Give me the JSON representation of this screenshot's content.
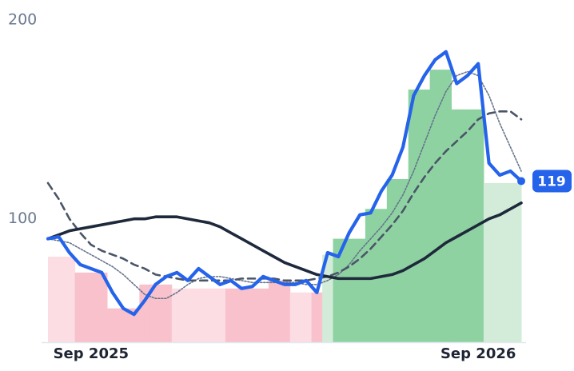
{
  "chart_data": {
    "type": "line",
    "categories": [
      null,
      null,
      null,
      null,
      "Sep 2025",
      null,
      null,
      null,
      null,
      null,
      null,
      null,
      null,
      null,
      null,
      null,
      null,
      null,
      null,
      null,
      null,
      null,
      null,
      null,
      null,
      null,
      null,
      null,
      null,
      null,
      null,
      null,
      null,
      null,
      null,
      null,
      null,
      null,
      null,
      null,
      "Sep 2026",
      null,
      null,
      null,
      null
    ],
    "ylim": [
      38,
      210
    ],
    "yticks": [
      100,
      200
    ],
    "series": [
      {
        "kind": "bars",
        "colors": [
          "#fcdde3",
          "#fcdde3",
          "#fcdde3",
          "#f8c1cb",
          "#f8c1cb",
          "#f8c1cb",
          "#f8c1cb",
          "#f8c1cb",
          "#f8c1cb",
          "#f8c1cb",
          "#f8c1cb",
          "#f8c1cb",
          "#fcdde3",
          "#fcdde3",
          "#fcdde3",
          "#fcdde3",
          "#fcdde3",
          "#f8c1cb",
          "#f8c1cb",
          "#f8c1cb",
          "#f8c1cb",
          "#f8c1cb",
          "#f8c1cb",
          "#fcdde3",
          "#fcdde3",
          "#f8c1cb",
          "#d3ecd9",
          "#8fd2a2",
          "#8fd2a2",
          "#8fd2a2",
          "#8fd2a2",
          "#8fd2a2",
          "#8fd2a2",
          "#8fd2a2",
          "#8fd2a2",
          "#8fd2a2",
          "#8fd2a2",
          "#8fd2a2",
          "#8fd2a2",
          "#8fd2a2",
          "#8fd2a2",
          "#d3ecd9",
          "#d3ecd9",
          "#d3ecd9",
          "#d3ecd9"
        ],
        "values": [
          81,
          81,
          81,
          73,
          73,
          73,
          55,
          55,
          55,
          67,
          67,
          67,
          65,
          65,
          65,
          65,
          65,
          65,
          65,
          65,
          65,
          69,
          69,
          63,
          63,
          63,
          82,
          90,
          90,
          90,
          105,
          105,
          120,
          120,
          165,
          165,
          175,
          175,
          155,
          155,
          155,
          118,
          118,
          118,
          118
        ]
      },
      {
        "kind": "line",
        "color": "#64748b",
        "width": 1.6,
        "dash": "2 2",
        "values": [
          90,
          89,
          88,
          85,
          82,
          79,
          76,
          72,
          67,
          62,
          60,
          60,
          63,
          67,
          70,
          71,
          71,
          70,
          69,
          68,
          68,
          68,
          68,
          68,
          67,
          67,
          69,
          72,
          77,
          84,
          90,
          96,
          103,
          112,
          124,
          138,
          152,
          164,
          172,
          174,
          172,
          162,
          148,
          136,
          124
        ]
      },
      {
        "kind": "line",
        "color": "#4a5568",
        "width": 2.6,
        "dash": "9 6",
        "values": [
          118,
          110,
          100,
          93,
          87,
          84,
          82,
          80,
          77,
          75,
          72,
          71,
          70,
          69,
          69,
          69,
          69,
          69,
          70,
          70,
          70,
          70,
          69,
          69,
          69,
          70,
          71,
          73,
          76,
          80,
          85,
          91,
          97,
          104,
          113,
          121,
          128,
          134,
          139,
          144,
          150,
          153,
          154,
          154,
          150
        ]
      },
      {
        "kind": "line",
        "color": "#1e293b",
        "width": 3.6,
        "values": [
          90,
          92,
          94,
          95,
          96,
          97,
          98,
          99,
          100,
          100,
          101,
          101,
          101,
          100,
          99,
          98,
          96,
          93,
          90,
          87,
          84,
          81,
          78,
          76,
          74,
          72,
          71,
          70,
          70,
          70,
          70,
          71,
          72,
          74,
          77,
          80,
          84,
          88,
          91,
          94,
          97,
          100,
          102,
          105,
          108
        ]
      },
      {
        "kind": "line",
        "color": "#2563eb",
        "width": 4.2,
        "last_badge": true,
        "values": [
          90,
          91,
          83,
          77,
          75,
          73,
          63,
          55,
          52,
          59,
          67,
          71,
          73,
          69,
          75,
          71,
          67,
          69,
          65,
          66,
          71,
          69,
          67,
          67,
          69,
          63,
          83,
          81,
          93,
          102,
          103,
          114,
          122,
          136,
          162,
          172,
          180,
          184,
          168,
          172,
          178,
          128,
          122,
          124,
          119
        ]
      }
    ]
  }
}
